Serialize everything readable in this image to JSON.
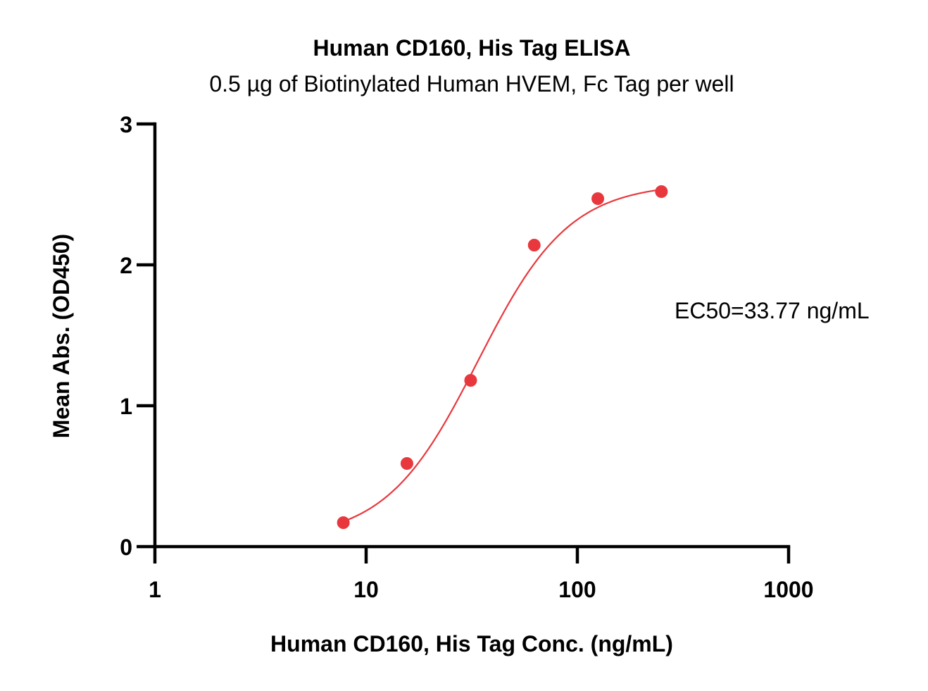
{
  "chart_data": {
    "type": "scatter",
    "title": "Human CD160, His Tag ELISA",
    "subtitle": "0.5 µg of Biotinylated Human HVEM, Fc Tag per well",
    "xlabel": "Human CD160, His Tag Conc. (ng/mL)",
    "ylabel": "Mean Abs. (OD450)",
    "xscale": "log",
    "xlim": [
      1,
      1000
    ],
    "ylim": [
      0,
      3
    ],
    "xticks": [
      1,
      10,
      100,
      1000
    ],
    "xtick_labels": [
      "1",
      "10",
      "100",
      "1000"
    ],
    "yticks": [
      0,
      1,
      2,
      3
    ],
    "ytick_labels": [
      "0",
      "1",
      "2",
      "3"
    ],
    "grid": false,
    "series": [
      {
        "x": [
          7.8,
          15.6,
          31.25,
          62.5,
          125,
          250
        ],
        "y": [
          0.17,
          0.59,
          1.18,
          2.14,
          2.47,
          2.52
        ],
        "color": "#e8383d"
      }
    ],
    "fit": {
      "type": "4PL",
      "bottom": 0.05,
      "top": 2.58,
      "ec50": 33.77,
      "hill": 2.0,
      "x_range": [
        7.8,
        250
      ],
      "color": "#e8383d"
    },
    "annotation": "EC50=33.77 ng/mL"
  }
}
